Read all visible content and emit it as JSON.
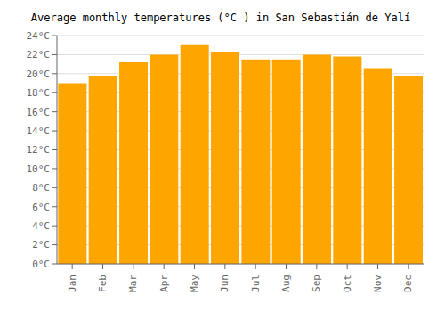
{
  "chart_data": {
    "type": "bar",
    "title": "Average monthly temperatures (°C ) in San Sebastián de Yalí",
    "categories": [
      "Jan",
      "Feb",
      "Mar",
      "Apr",
      "May",
      "Jun",
      "Jul",
      "Aug",
      "Sep",
      "Oct",
      "Nov",
      "Dec"
    ],
    "values": [
      19.0,
      19.8,
      21.2,
      22.0,
      23.0,
      22.3,
      21.5,
      21.5,
      22.0,
      21.8,
      20.5,
      19.7
    ],
    "color": "#FFA500",
    "ylim": [
      0,
      24
    ],
    "yticks": [
      {
        "value": 0,
        "label": "0°C"
      },
      {
        "value": 2,
        "label": "2°C"
      },
      {
        "value": 4,
        "label": "4°C"
      },
      {
        "value": 6,
        "label": "6°C"
      },
      {
        "value": 8,
        "label": "8°C"
      },
      {
        "value": 10,
        "label": "10°C"
      },
      {
        "value": 12,
        "label": "12°C"
      },
      {
        "value": 14,
        "label": "14°C"
      },
      {
        "value": 16,
        "label": "16°C"
      },
      {
        "value": 18,
        "label": "18°C"
      },
      {
        "value": 20,
        "label": "20°C"
      },
      {
        "value": 22,
        "label": "22°C"
      },
      {
        "value": 24,
        "label": "24°C"
      }
    ],
    "grid": true
  }
}
